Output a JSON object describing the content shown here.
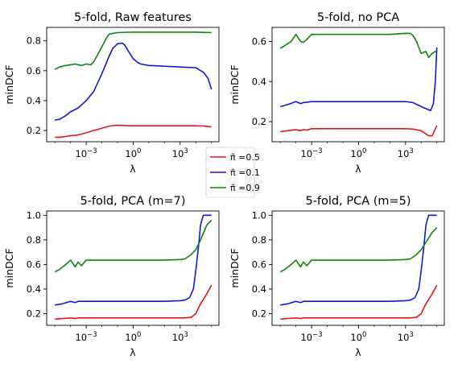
{
  "colors": {
    "red": "#e8141a",
    "blue": "#1414e0",
    "green": "#0a860a",
    "axis": "#000000"
  },
  "legend": {
    "entries": [
      {
        "label": "π̃ =0.5",
        "color": "#e8141a"
      },
      {
        "label": "π̃ =0.1",
        "color": "#1414e0"
      },
      {
        "label": "π̃ =0.9",
        "color": "#0a860a"
      }
    ]
  },
  "chart_data": [
    {
      "type": "line",
      "title": "5-fold, Raw features",
      "xlabel": "λ",
      "ylabel": "minDCF",
      "xscale": "log",
      "xlim": [
        3e-06,
        300000.0
      ],
      "ylim": [
        0.125,
        0.89
      ],
      "xticks": [
        {
          "value": 0.001,
          "label": "10−3"
        },
        {
          "value": 1,
          "label": "100"
        },
        {
          "value": 1000,
          "label": "103"
        }
      ],
      "yticks": [
        {
          "value": 0.2,
          "label": "0.2"
        },
        {
          "value": 0.4,
          "label": "0.4"
        },
        {
          "value": 0.6,
          "label": "0.6"
        },
        {
          "value": 0.8,
          "label": "0.8"
        }
      ],
      "series": [
        {
          "name": "π̃ =0.5",
          "color": "#e8141a",
          "x": [
            1e-05,
            2e-05,
            5e-05,
            0.0001,
            0.0003,
            0.001,
            0.003,
            0.01,
            0.03,
            0.1,
            0.3,
            1,
            3,
            10,
            100,
            1000,
            10000,
            30000,
            100000
          ],
          "y": [
            0.155,
            0.155,
            0.16,
            0.165,
            0.17,
            0.185,
            0.2,
            0.215,
            0.23,
            0.235,
            0.233,
            0.232,
            0.232,
            0.232,
            0.232,
            0.232,
            0.232,
            0.23,
            0.225
          ]
        },
        {
          "name": "π̃ =0.1",
          "color": "#1414e0",
          "x": [
            1e-05,
            2e-05,
            5e-05,
            0.0001,
            0.0003,
            0.001,
            0.003,
            0.01,
            0.03,
            0.05,
            0.1,
            0.2,
            0.3,
            0.5,
            1,
            2,
            3,
            10,
            30,
            100,
            1000,
            10000,
            30000,
            60000,
            100000
          ],
          "y": [
            0.27,
            0.275,
            0.3,
            0.325,
            0.35,
            0.4,
            0.46,
            0.58,
            0.7,
            0.75,
            0.78,
            0.785,
            0.77,
            0.73,
            0.68,
            0.655,
            0.645,
            0.635,
            0.633,
            0.63,
            0.625,
            0.62,
            0.59,
            0.55,
            0.475
          ]
        },
        {
          "name": "π̃ =0.9",
          "color": "#0a860a",
          "x": [
            1e-05,
            2e-05,
            5e-05,
            0.0001,
            0.0002,
            0.0003,
            0.0005,
            0.001,
            0.002,
            0.003,
            0.005,
            0.01,
            0.02,
            0.03,
            0.05,
            0.1,
            0.3,
            1,
            10,
            100,
            1000,
            10000,
            100000
          ],
          "y": [
            0.61,
            0.625,
            0.635,
            0.64,
            0.645,
            0.64,
            0.635,
            0.645,
            0.64,
            0.66,
            0.7,
            0.76,
            0.82,
            0.845,
            0.85,
            0.855,
            0.857,
            0.858,
            0.858,
            0.858,
            0.858,
            0.858,
            0.855
          ]
        }
      ]
    },
    {
      "type": "line",
      "title": "5-fold, no PCA",
      "xlabel": "λ",
      "ylabel": "minDCF",
      "xscale": "log",
      "xlim": [
        3e-06,
        300000.0
      ],
      "ylim": [
        0.1,
        0.67
      ],
      "xticks": [
        {
          "value": 0.001,
          "label": "10−3"
        },
        {
          "value": 1,
          "label": "100"
        },
        {
          "value": 1000,
          "label": "103"
        }
      ],
      "yticks": [
        {
          "value": 0.2,
          "label": "0.2"
        },
        {
          "value": 0.4,
          "label": "0.4"
        },
        {
          "value": 0.6,
          "label": "0.6"
        }
      ],
      "series": [
        {
          "name": "π̃ =0.5",
          "color": "#e8141a",
          "x": [
            1e-05,
            3e-05,
            0.0001,
            0.0002,
            0.0003,
            0.0005,
            0.001,
            0.01,
            0.1,
            1,
            10,
            100,
            1000,
            3000,
            10000,
            30000,
            50000,
            100000
          ],
          "y": [
            0.15,
            0.155,
            0.16,
            0.155,
            0.16,
            0.158,
            0.165,
            0.165,
            0.165,
            0.165,
            0.165,
            0.165,
            0.165,
            0.163,
            0.155,
            0.13,
            0.13,
            0.18
          ]
        },
        {
          "name": "π̃ =0.1",
          "color": "#1414e0",
          "x": [
            1e-05,
            3e-05,
            0.0001,
            0.0002,
            0.0003,
            0.0005,
            0.001,
            0.01,
            0.1,
            1,
            10,
            100,
            1000,
            3000,
            10000,
            20000,
            40000,
            60000,
            80000,
            100000
          ],
          "y": [
            0.275,
            0.285,
            0.3,
            0.29,
            0.295,
            0.297,
            0.3,
            0.3,
            0.3,
            0.3,
            0.3,
            0.3,
            0.3,
            0.295,
            0.275,
            0.265,
            0.255,
            0.29,
            0.4,
            0.57
          ]
        },
        {
          "name": "π̃ =0.9",
          "color": "#0a860a",
          "x": [
            1e-05,
            2e-05,
            5e-05,
            0.0001,
            0.0002,
            0.0003,
            0.0005,
            0.001,
            0.003,
            0.01,
            0.1,
            1,
            10,
            100,
            1000,
            2000,
            3000,
            5000,
            10000,
            20000,
            30000,
            50000,
            100000
          ],
          "y": [
            0.565,
            0.58,
            0.6,
            0.635,
            0.6,
            0.595,
            0.61,
            0.635,
            0.635,
            0.635,
            0.635,
            0.635,
            0.635,
            0.635,
            0.64,
            0.64,
            0.63,
            0.6,
            0.54,
            0.55,
            0.52,
            0.54,
            0.555
          ]
        }
      ]
    },
    {
      "type": "line",
      "title": "5-fold, PCA (m=7)",
      "xlabel": "λ",
      "ylabel": "minDCF",
      "xscale": "log",
      "xlim": [
        3e-06,
        300000.0
      ],
      "ylim": [
        0.105,
        1.035
      ],
      "xticks": [
        {
          "value": 0.001,
          "label": "10−3"
        },
        {
          "value": 1,
          "label": "100"
        },
        {
          "value": 1000,
          "label": "103"
        }
      ],
      "yticks": [
        {
          "value": 0.2,
          "label": "0.2"
        },
        {
          "value": 0.4,
          "label": "0.4"
        },
        {
          "value": 0.6,
          "label": "0.6"
        },
        {
          "value": 0.8,
          "label": "0.8"
        },
        {
          "value": 1.0,
          "label": "1.0"
        }
      ],
      "series": [
        {
          "name": "π̃ =0.5",
          "color": "#e8141a",
          "x": [
            1e-05,
            3e-05,
            0.0001,
            0.0002,
            0.0003,
            0.0005,
            0.001,
            0.01,
            0.1,
            1,
            10,
            100,
            1000,
            2000,
            5000,
            10000,
            20000,
            50000,
            100000
          ],
          "y": [
            0.155,
            0.16,
            0.165,
            0.16,
            0.165,
            0.165,
            0.165,
            0.165,
            0.165,
            0.165,
            0.165,
            0.165,
            0.165,
            0.165,
            0.17,
            0.2,
            0.28,
            0.36,
            0.43
          ]
        },
        {
          "name": "π̃ =0.1",
          "color": "#1414e0",
          "x": [
            1e-05,
            3e-05,
            0.0001,
            0.0002,
            0.0003,
            0.0005,
            0.001,
            0.01,
            0.1,
            1,
            10,
            100,
            1000,
            2000,
            4000,
            7000,
            10000,
            15000,
            20000,
            30000,
            50000,
            100000
          ],
          "y": [
            0.27,
            0.28,
            0.3,
            0.29,
            0.3,
            0.3,
            0.3,
            0.3,
            0.3,
            0.3,
            0.3,
            0.3,
            0.305,
            0.31,
            0.33,
            0.4,
            0.55,
            0.75,
            0.92,
            1.0,
            1.0,
            1.0
          ]
        },
        {
          "name": "π̃ =0.9",
          "color": "#0a860a",
          "x": [
            1e-05,
            2e-05,
            5e-05,
            0.0001,
            0.0002,
            0.0003,
            0.0005,
            0.001,
            0.003,
            0.01,
            0.1,
            1,
            10,
            100,
            1000,
            2000,
            3000,
            5000,
            10000,
            20000,
            50000,
            100000
          ],
          "y": [
            0.54,
            0.56,
            0.6,
            0.635,
            0.58,
            0.62,
            0.59,
            0.635,
            0.635,
            0.635,
            0.635,
            0.635,
            0.635,
            0.635,
            0.64,
            0.645,
            0.66,
            0.68,
            0.72,
            0.8,
            0.92,
            0.96
          ]
        }
      ]
    },
    {
      "type": "line",
      "title": "5-fold, PCA (m=5)",
      "xlabel": "λ",
      "ylabel": "minDCF",
      "xscale": "log",
      "xlim": [
        3e-06,
        300000.0
      ],
      "ylim": [
        0.105,
        1.035
      ],
      "xticks": [
        {
          "value": 0.001,
          "label": "10−3"
        },
        {
          "value": 1,
          "label": "100"
        },
        {
          "value": 1000,
          "label": "103"
        }
      ],
      "yticks": [
        {
          "value": 0.2,
          "label": "0.2"
        },
        {
          "value": 0.4,
          "label": "0.4"
        },
        {
          "value": 0.6,
          "label": "0.6"
        },
        {
          "value": 0.8,
          "label": "0.8"
        },
        {
          "value": 1.0,
          "label": "1.0"
        }
      ],
      "series": [
        {
          "name": "π̃ =0.5",
          "color": "#e8141a",
          "x": [
            1e-05,
            3e-05,
            0.0001,
            0.0002,
            0.0003,
            0.0005,
            0.001,
            0.01,
            0.1,
            1,
            10,
            100,
            1000,
            2000,
            5000,
            10000,
            20000,
            50000,
            100000
          ],
          "y": [
            0.155,
            0.16,
            0.165,
            0.16,
            0.165,
            0.165,
            0.165,
            0.165,
            0.165,
            0.165,
            0.165,
            0.165,
            0.165,
            0.165,
            0.17,
            0.2,
            0.28,
            0.36,
            0.43
          ]
        },
        {
          "name": "π̃ =0.1",
          "color": "#1414e0",
          "x": [
            1e-05,
            3e-05,
            0.0001,
            0.0002,
            0.0003,
            0.0005,
            0.001,
            0.01,
            0.1,
            1,
            10,
            100,
            1000,
            2000,
            4000,
            7000,
            10000,
            15000,
            20000,
            30000,
            50000,
            100000
          ],
          "y": [
            0.27,
            0.28,
            0.3,
            0.29,
            0.3,
            0.3,
            0.3,
            0.3,
            0.3,
            0.3,
            0.3,
            0.3,
            0.305,
            0.31,
            0.33,
            0.4,
            0.55,
            0.75,
            0.92,
            1.0,
            1.0,
            1.0
          ]
        },
        {
          "name": "π̃ =0.9",
          "color": "#0a860a",
          "x": [
            1e-05,
            2e-05,
            5e-05,
            0.0001,
            0.0002,
            0.0003,
            0.0005,
            0.001,
            0.003,
            0.01,
            0.1,
            1,
            10,
            100,
            1000,
            2000,
            3000,
            5000,
            10000,
            20000,
            50000,
            100000
          ],
          "y": [
            0.54,
            0.56,
            0.6,
            0.635,
            0.58,
            0.62,
            0.59,
            0.635,
            0.635,
            0.635,
            0.635,
            0.635,
            0.635,
            0.635,
            0.64,
            0.645,
            0.66,
            0.68,
            0.72,
            0.78,
            0.86,
            0.9
          ]
        }
      ]
    }
  ]
}
